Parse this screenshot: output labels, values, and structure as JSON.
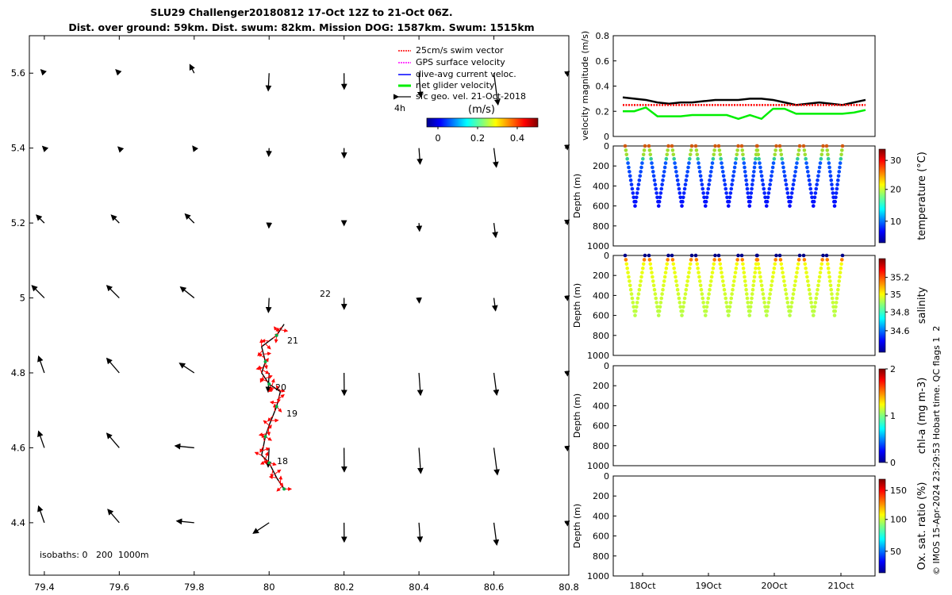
{
  "title_line1": "SLU29 Challenger20180812 17-Oct 12Z to 21-Oct 06Z.",
  "title_line2": "Dist. over ground: 59km. Dist. swum: 82km. Mission DOG: 1587km. Swum: 1515km",
  "map": {
    "x_ticks": [
      "79.4",
      "79.6",
      "79.8",
      "80",
      "80.2",
      "80.4",
      "80.6",
      "80.8"
    ],
    "y_ticks": [
      "5.6",
      "5.4",
      "5.2",
      "5",
      "4.8",
      "4.6",
      "4.4"
    ],
    "legend": [
      "25cm/s swim vector",
      "GPS surface velocity",
      "dive-avg current veloc.",
      "net glider velocity",
      "sfc geo. vel. 21-Oct-2018"
    ],
    "legend_colors": [
      "#ff0000",
      "#ff00ff",
      "#0000ff",
      "#00ee00",
      "#000000"
    ],
    "scale_label": "4h",
    "colorbar_unit": "(m/s)",
    "colorbar_ticks": [
      "0",
      "0.2",
      "0.4"
    ],
    "day_labels": [
      "22",
      "21",
      "20",
      "19",
      "18"
    ],
    "isobaths_text": "isobaths: 0   200  1000m"
  },
  "vel_panel": {
    "ylabel": "velocity magnitude (m/s)",
    "y_ticks": [
      "0",
      "0.2",
      "0.4",
      "0.6",
      "0.8"
    ]
  },
  "depth_panels": [
    {
      "ylabel": "Depth (m)",
      "cbar_label": "temperature (°C)",
      "cbar_ticks": [
        "30",
        "20",
        "10"
      ]
    },
    {
      "ylabel": "Depth (m)",
      "cbar_label": "salinity",
      "cbar_ticks": [
        "35.2",
        "35",
        "34.8",
        "34.6"
      ]
    },
    {
      "ylabel": "Depth (m)",
      "cbar_label": "chl-a (mg m-3)",
      "cbar_ticks": [
        "2",
        "1",
        "0"
      ]
    },
    {
      "ylabel": "Depth (m)",
      "cbar_label": "Ox. sat. ratio (%)",
      "cbar_ticks": [
        "150",
        "100",
        "50"
      ]
    }
  ],
  "depth_ticks": [
    "0",
    "200",
    "400",
    "600",
    "800",
    "1000"
  ],
  "time_ticks": [
    "18Oct",
    "19Oct",
    "20Oct",
    "21Oct"
  ],
  "side_note": "© IMOS 15-Apr-2024 23:29:53 Hobart time. QC flags 1  2",
  "chart_data": {
    "type": "scatter",
    "map": {
      "xlim": [
        79.36,
        80.8
      ],
      "ylim": [
        4.26,
        5.7
      ],
      "glider_track": [
        {
          "lon": 80.04,
          "lat": 4.49
        },
        {
          "lon": 80.02,
          "lat": 4.52
        },
        {
          "lon": 80.0,
          "lat": 4.56
        },
        {
          "lon": 79.98,
          "lat": 4.58
        },
        {
          "lon": 79.99,
          "lat": 4.63
        },
        {
          "lon": 80.0,
          "lat": 4.66
        },
        {
          "lon": 80.02,
          "lat": 4.71
        },
        {
          "lon": 80.03,
          "lat": 4.75
        },
        {
          "lon": 80.0,
          "lat": 4.77
        },
        {
          "lon": 79.98,
          "lat": 4.8
        },
        {
          "lon": 79.99,
          "lat": 4.83
        },
        {
          "lon": 79.98,
          "lat": 4.87
        },
        {
          "lon": 80.02,
          "lat": 4.9
        },
        {
          "lon": 80.04,
          "lat": 4.93
        }
      ]
    },
    "velocity": {
      "ylim": [
        0,
        0.8
      ],
      "series": [
        {
          "name": "sfc geo. vel. 21-Oct-2018",
          "values": [
            0.31,
            0.3,
            0.29,
            0.27,
            0.26,
            0.27,
            0.27,
            0.28,
            0.29,
            0.29,
            0.29,
            0.3,
            0.3,
            0.29,
            0.27,
            0.25,
            0.26,
            0.27,
            0.26,
            0.25,
            0.27,
            0.29
          ]
        },
        {
          "name": "25cm/s swim vector",
          "values": [
            0.25,
            0.25,
            0.25,
            0.25,
            0.25,
            0.25,
            0.25,
            0.25,
            0.25,
            0.25,
            0.25,
            0.25,
            0.25,
            0.25,
            0.25,
            0.25,
            0.25,
            0.25,
            0.25,
            0.25,
            0.25,
            0.25
          ]
        },
        {
          "name": "net glider velocity",
          "values": [
            0.2,
            0.2,
            0.23,
            0.16,
            0.16,
            0.16,
            0.17,
            0.17,
            0.17,
            0.17,
            0.14,
            0.17,
            0.14,
            0.22,
            0.22,
            0.18,
            0.18,
            0.18,
            0.18,
            0.18,
            0.19,
            0.21
          ]
        }
      ]
    },
    "profiles": {
      "count": 10,
      "max_depth_m": 600
    }
  }
}
